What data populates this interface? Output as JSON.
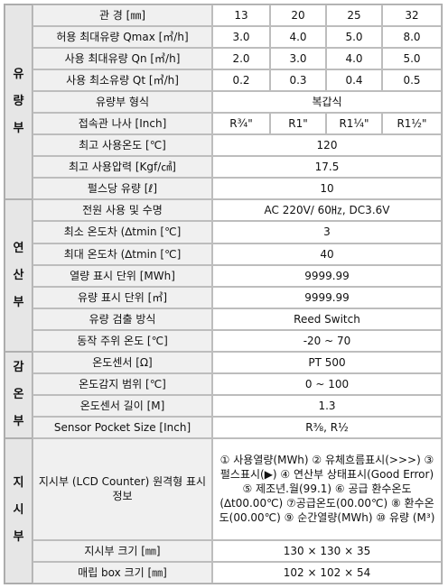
{
  "flow": {
    "section": [
      "유",
      "량",
      "부"
    ],
    "rows": [
      {
        "label": "관 경 [㎜]",
        "values": [
          "13",
          "20",
          "25",
          "32"
        ]
      },
      {
        "label": "허용 최대유량 Qmax [㎥/h]",
        "values": [
          "3.0",
          "4.0",
          "5.0",
          "8.0"
        ]
      },
      {
        "label": "사용 최대유량 Qn [㎥/h]",
        "values": [
          "2.0",
          "3.0",
          "4.0",
          "5.0"
        ]
      },
      {
        "label": "사용 최소유량 Qt [㎥/h]",
        "values": [
          "0.2",
          "0.3",
          "0.4",
          "0.5"
        ]
      },
      {
        "label": "유량부 형식",
        "value": "복갑식"
      },
      {
        "label": "접속관 나사 [Inch]",
        "values": [
          "R¾\"",
          "R1\"",
          "R1¼\"",
          "R1½\""
        ]
      },
      {
        "label": "최고 사용온도 [℃]",
        "value": "120"
      },
      {
        "label": "최고 사용압력 [Kgf/㎠]",
        "value": "17.5"
      },
      {
        "label": "펄스당 유량 [ℓ]",
        "value": "10"
      }
    ]
  },
  "compute": {
    "section": [
      "연",
      "산",
      "부"
    ],
    "rows": [
      {
        "label": "전원 사용 및 수명",
        "value": "AC 220V/ 60㎐, DC3.6V"
      },
      {
        "label": "최소 온도차 (∆tmin [℃]",
        "value": "3"
      },
      {
        "label": "최대 온도차 (∆tmin [℃]",
        "value": "40"
      },
      {
        "label": "열량 표시 단위 [MWh]",
        "value": "9999.99"
      },
      {
        "label": "유량 표시 단위 [㎥]",
        "value": "9999.99"
      },
      {
        "label": "유량 검출 방식",
        "value": "Reed Switch"
      },
      {
        "label": "동작 주위 온도 [℃]",
        "value": "-20 ~ 70"
      }
    ]
  },
  "sensor": {
    "section": [
      "감",
      "온",
      "부"
    ],
    "rows": [
      {
        "label": "온도센서 [Ω]",
        "value": "PT 500"
      },
      {
        "label": "온도감지 범위 [℃]",
        "value": "0 ~ 100"
      },
      {
        "label": "온도센서 길이 [M]",
        "value": "1.3"
      },
      {
        "label": "Sensor Pocket Size [Inch]",
        "value": "R⅜, R½"
      }
    ]
  },
  "display": {
    "section": [
      "지",
      "시",
      "부"
    ],
    "rows": [
      {
        "label": "지시부 (LCD Counter) 원격형 표시정보",
        "value": "① 사용열량(MWh) ② 유체흐름표시(>>>) ③ 펄스표시(▶) ④ 연산부 상태표시(Good Error) ⑤ 제조년.월(99.1) ⑥ 공급 환수온도 (∆t00.00℃) ⑦공급온도(00.00℃) ⑧ 환수온도(00.00℃) ⑨ 순간열량(MWh) ⑩ 유량 (M³)"
      },
      {
        "label": "지시부 크기 [㎜]",
        "value": "130 × 130 × 35"
      },
      {
        "label": "매립 box 크기 [㎜]",
        "value": "102 × 102 × 54"
      }
    ]
  }
}
